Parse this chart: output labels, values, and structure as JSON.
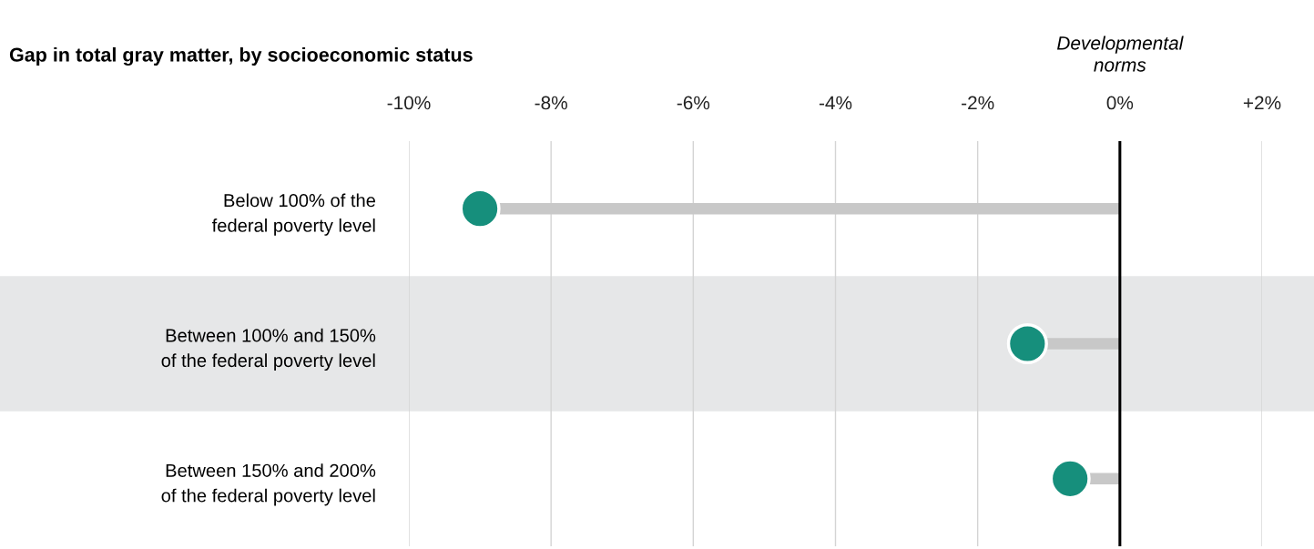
{
  "chart_data": {
    "type": "lollipop",
    "orientation": "horizontal",
    "title": "Gap in total gray matter, by socioeconomic status",
    "categories": [
      "Below 100% of the\nfederal poverty level",
      "Between 100% and 150%\nof the federal poverty level",
      "Between 150% and 200%\nof the federal poverty level"
    ],
    "values": [
      -9.0,
      -1.3,
      -0.7
    ],
    "color": "#168f7c",
    "xlim": [
      -10,
      2
    ],
    "xticks": [
      {
        "value": -10,
        "label": "-10%"
      },
      {
        "value": -8,
        "label": "-8%"
      },
      {
        "value": -6,
        "label": "-6%"
      },
      {
        "value": -4,
        "label": "-4%"
      },
      {
        "value": -2,
        "label": "-2%"
      },
      {
        "value": 0,
        "label": "0%"
      },
      {
        "value": 2,
        "label": "+2%"
      }
    ],
    "grid": "x",
    "marker": "circle",
    "ref_lines": [
      {
        "axis": "x",
        "value": 0,
        "label": "Developmental\nnorms",
        "color": "#000000"
      }
    ],
    "bands": [
      {
        "axis": "y",
        "from": "Between 100% and 150%\nof the federal poverty level",
        "to": "Between 100% and 150%\nof the federal poverty level",
        "color": "#e6e7e8"
      }
    ]
  }
}
